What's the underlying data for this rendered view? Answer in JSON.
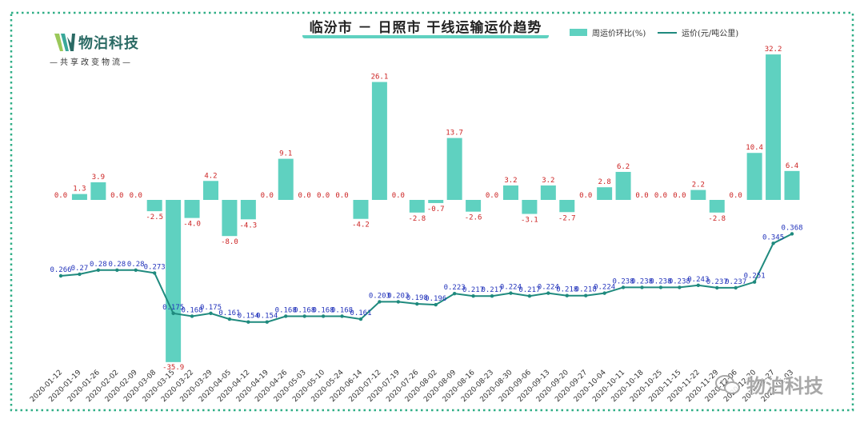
{
  "title": "临汾市 － 日照市 干线运输运价趋势",
  "logo": {
    "brand": "物泊科技",
    "slogan": "—共享改变物流—"
  },
  "watermark": {
    "text": "物泊科技"
  },
  "colors": {
    "bar": "#5fd1c0",
    "line": "#1f8a7e",
    "bar_label": "#cc2222",
    "line_label": "#2233bb",
    "frame": "#2fae86"
  },
  "chart_data": {
    "type": "bar+line",
    "title": "临汾市 － 日照市 干线运输运价趋势",
    "legend": [
      "周运价环比(%)",
      "运价(元/吨公里)"
    ],
    "legend_position": "top-right",
    "categories": [
      "2020-01-12",
      "2020-01-19",
      "2020-01-26",
      "2020-02-02",
      "2020-02-09",
      "2020-03-08",
      "2020-03-15",
      "2020-03-22",
      "2020-03-29",
      "2020-04-05",
      "2020-04-12",
      "2020-04-19",
      "2020-04-26",
      "2020-05-03",
      "2020-05-10",
      "2020-05-24",
      "2020-06-14",
      "2020-07-12",
      "2020-07-19",
      "2020-07-26",
      "2020-08-02",
      "2020-08-09",
      "2020-08-16",
      "2020-08-23",
      "2020-08-30",
      "2020-09-06",
      "2020-09-13",
      "2020-09-20",
      "2020-09-27",
      "2020-10-04",
      "2020-10-11",
      "2020-10-18",
      "2020-10-25",
      "2020-11-15",
      "2020-11-22",
      "2020-11-29",
      "2020-12-06",
      "2020-12-20",
      "2020-12-27",
      "2021-01-03"
    ],
    "series": [
      {
        "name": "周运价环比(%)",
        "type": "bar",
        "values": [
          0.0,
          1.3,
          3.9,
          0.0,
          0.0,
          -2.5,
          -35.9,
          -4.0,
          4.2,
          -8.0,
          -4.3,
          0.0,
          9.1,
          0.0,
          0.0,
          0.0,
          -4.2,
          26.1,
          0.0,
          -2.8,
          -0.7,
          13.7,
          -2.6,
          0.0,
          3.2,
          -3.1,
          3.2,
          -2.7,
          0.0,
          2.8,
          6.2,
          0.0,
          0.0,
          0.0,
          2.2,
          -2.8,
          0.0,
          10.4,
          32.2,
          6.4
        ],
        "labels": [
          "0.0",
          "1.3",
          "3.9",
          "0.0",
          "0.0",
          "-2.5",
          "-35.9",
          "-4.0",
          "4.2",
          "-8.0",
          "-4.3",
          "0.0",
          "9.1",
          "0.0",
          "0.0",
          "0.0",
          "-4.2",
          "26.1",
          "0.0",
          "-2.8",
          "-0.7",
          "13.7",
          "-2.6",
          "0.0",
          "3.2",
          "-3.1",
          "3.2",
          "-2.7",
          "0.0",
          "2.8",
          "6.2",
          "0.0",
          "0.0",
          "0.0",
          "2.2",
          "-2.8",
          "0.0",
          "10.4",
          "32.2",
          "6.4"
        ]
      },
      {
        "name": "运价(元/吨公里)",
        "type": "line",
        "values": [
          0.266,
          0.27,
          0.28,
          0.28,
          0.28,
          0.273,
          0.175,
          0.168,
          0.175,
          0.161,
          0.154,
          0.154,
          0.168,
          0.168,
          0.168,
          0.168,
          0.161,
          0.203,
          0.203,
          0.198,
          0.196,
          0.223,
          0.217,
          0.217,
          0.224,
          0.217,
          0.224,
          0.218,
          0.218,
          0.224,
          0.238,
          0.238,
          0.238,
          0.238,
          0.243,
          0.237,
          0.237,
          0.251,
          0.345,
          0.368
        ],
        "labels": [
          "0.266",
          "0.27",
          "0.28",
          "0.28",
          "0.28",
          "0.273",
          "0.175",
          "0.168",
          "0.175",
          "0.161",
          "0.154",
          "0.154",
          "0.168",
          "0.168",
          "0.168",
          "0.168",
          "0.161",
          "0.203",
          "0.203",
          "0.198",
          "0.196",
          "0.223",
          "0.217",
          "0.217",
          "0.224",
          "0.217",
          "0.224",
          "0.218",
          "0.218",
          "0.224",
          "0.238",
          "0.238",
          "0.238",
          "0.238",
          "0.243",
          "0.237",
          "0.237",
          "0.251",
          "0.345",
          "0.368"
        ]
      }
    ],
    "bar_ylim": [
      -36,
      33
    ],
    "line_ylim": [
      0.05,
      0.42
    ],
    "grid": false
  }
}
